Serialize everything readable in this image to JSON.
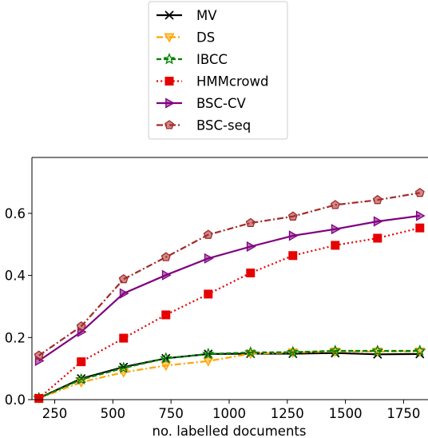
{
  "chart_data": {
    "type": "line",
    "xlabel": "no. labelled documents",
    "ylabel": "",
    "xlim": [
      152,
      1855
    ],
    "ylim": [
      0,
      0.78
    ],
    "xticks": [
      250,
      500,
      750,
      1000,
      1250,
      1500,
      1750
    ],
    "yticks": [
      0.0,
      0.2,
      0.4,
      0.6
    ],
    "grid": false,
    "legend_position": "top-center",
    "x": [
      182,
      364,
      546,
      728,
      910,
      1092,
      1274,
      1456,
      1638,
      1820
    ],
    "series": [
      {
        "name": "MV",
        "color": "#000000",
        "dash": "solid",
        "marker": "x",
        "values": [
          0.005,
          0.068,
          0.105,
          0.133,
          0.147,
          0.148,
          0.148,
          0.15,
          0.146,
          0.147
        ]
      },
      {
        "name": "DS",
        "color": "#ffa500",
        "dash": "dashdot",
        "marker": "triangle-down",
        "values": [
          0.004,
          0.056,
          0.088,
          0.11,
          0.124,
          0.148,
          0.152,
          0.155,
          0.155,
          0.155
        ]
      },
      {
        "name": "IBCC",
        "color": "#008000",
        "dash": "dashed",
        "marker": "star",
        "values": [
          0.005,
          0.065,
          0.102,
          0.133,
          0.147,
          0.152,
          0.153,
          0.157,
          0.157,
          0.157
        ]
      },
      {
        "name": "HMMcrowd",
        "color": "#e60000",
        "dash": "dotted",
        "marker": "square",
        "values": [
          0.004,
          0.122,
          0.198,
          0.273,
          0.34,
          0.408,
          0.464,
          0.497,
          0.52,
          0.553
        ]
      },
      {
        "name": "BSC-CV",
        "color": "#800080",
        "dash": "solid",
        "marker": "triangle-right",
        "values": [
          0.125,
          0.218,
          0.342,
          0.401,
          0.455,
          0.493,
          0.528,
          0.549,
          0.574,
          0.592
        ]
      },
      {
        "name": "BSC-seq",
        "color": "#a52a2a",
        "dash": "dashdot",
        "marker": "pentagon",
        "values": [
          0.142,
          0.236,
          0.388,
          0.459,
          0.531,
          0.569,
          0.59,
          0.627,
          0.643,
          0.666
        ]
      }
    ]
  }
}
